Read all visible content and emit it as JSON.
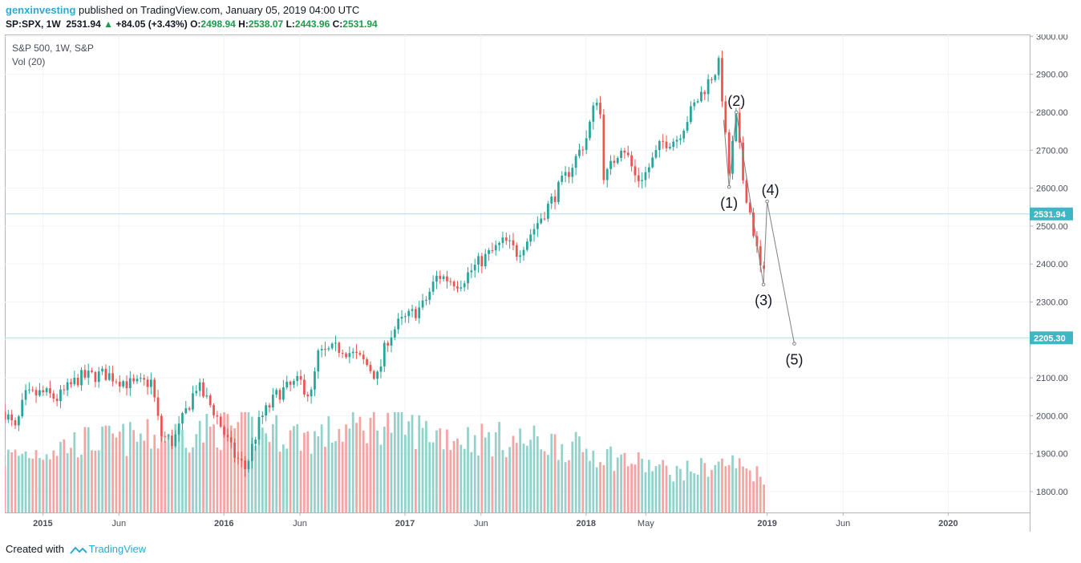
{
  "header": {
    "user": "genxinvesting",
    "published": "published on TradingView.com, January 05, 2019 04:00 UTC",
    "symbol": "SP:SPX, 1W",
    "last": "2531.94",
    "change": "+84.05 (+3.43%)",
    "o_label": "O:",
    "o": "2498.94",
    "h_label": "H:",
    "h": "2538.07",
    "l_label": "L:",
    "l": "2443.96",
    "c_label": "C:",
    "c": "2531.94"
  },
  "legend": {
    "title": "S&P 500, 1W, S&P",
    "volume": "Vol (20)"
  },
  "footer": {
    "created": "Created with",
    "brand": "TradingView"
  },
  "chart_data": {
    "type": "candlestick",
    "ylim": [
      1745,
      3005
    ],
    "y_ticks": [
      "3000.00",
      "2900.00",
      "2800.00",
      "2700.00",
      "2600.00",
      "2500.00",
      "2400.00",
      "2300.00",
      "2200.00",
      "2100.00",
      "2000.00",
      "1900.00",
      "1800.00"
    ],
    "x_ticks": [
      "2015",
      "Jun",
      "2016",
      "Jun",
      "2017",
      "Jun",
      "2018",
      "May",
      "2019",
      "Jun",
      "2020"
    ],
    "x_tick_dates": [
      2015.0,
      2015.42,
      2016.0,
      2016.42,
      2017.0,
      2017.42,
      2018.0,
      2018.33,
      2019.0,
      2019.42,
      2020.0
    ],
    "xlim": [
      2014.79,
      2020.45
    ],
    "price_lines": [
      {
        "value": 2531.94,
        "label": "2531.94"
      },
      {
        "value": 2205.3,
        "label": "2205.30"
      }
    ],
    "colors": {
      "up": "#26a69a",
      "down": "#ef5350",
      "vol_up": "#93d2cb",
      "vol_down": "#f5a4a2",
      "hline": "#a9dfe6",
      "wave": "#808080"
    },
    "elliott_wave": [
      {
        "label": "(1)",
        "date": 2018.79,
        "value": 2603
      },
      {
        "label": "(2)",
        "date": 2018.83,
        "value": 2800
      },
      {
        "label": "(3)",
        "date": 2018.98,
        "value": 2346
      },
      {
        "label": "(4)",
        "date": 2019.0,
        "value": 2565
      },
      {
        "label": "(5)",
        "date": 2019.15,
        "value": 2190
      }
    ],
    "wave_start": {
      "date": 2018.76,
      "value": 2780
    },
    "price_path": [
      [
        2014.79,
        2010
      ],
      [
        2014.85,
        1960
      ],
      [
        2014.9,
        2050
      ],
      [
        2015.0,
        2060
      ],
      [
        2015.08,
        2045
      ],
      [
        2015.2,
        2100
      ],
      [
        2015.35,
        2110
      ],
      [
        2015.5,
        2080
      ],
      [
        2015.6,
        2090
      ],
      [
        2015.65,
        1950
      ],
      [
        2015.72,
        1930
      ],
      [
        2015.85,
        2080
      ],
      [
        2015.95,
        2010
      ],
      [
        2016.05,
        1900
      ],
      [
        2016.12,
        1860
      ],
      [
        2016.2,
        1990
      ],
      [
        2016.3,
        2060
      ],
      [
        2016.42,
        2090
      ],
      [
        2016.48,
        2050
      ],
      [
        2016.52,
        2160
      ],
      [
        2016.65,
        2180
      ],
      [
        2016.78,
        2140
      ],
      [
        2016.85,
        2100
      ],
      [
        2016.9,
        2200
      ],
      [
        2016.96,
        2240
      ],
      [
        2017.1,
        2290
      ],
      [
        2017.18,
        2370
      ],
      [
        2017.3,
        2350
      ],
      [
        2017.4,
        2400
      ],
      [
        2017.55,
        2460
      ],
      [
        2017.62,
        2430
      ],
      [
        2017.68,
        2470
      ],
      [
        2017.8,
        2560
      ],
      [
        2017.9,
        2640
      ],
      [
        2018.0,
        2730
      ],
      [
        2018.07,
        2860
      ],
      [
        2018.1,
        2620
      ],
      [
        2018.2,
        2720
      ],
      [
        2018.28,
        2620
      ],
      [
        2018.33,
        2640
      ],
      [
        2018.42,
        2720
      ],
      [
        2018.5,
        2730
      ],
      [
        2018.6,
        2820
      ],
      [
        2018.7,
        2900
      ],
      [
        2018.74,
        2930
      ],
      [
        2018.76,
        2780
      ],
      [
        2018.79,
        2640
      ],
      [
        2018.83,
        2790
      ],
      [
        2018.86,
        2640
      ],
      [
        2018.9,
        2550
      ],
      [
        2018.95,
        2420
      ],
      [
        2018.98,
        2350
      ],
      [
        2019.0,
        2531.94
      ]
    ],
    "volume_levels": [
      [
        2014.79,
        0.55
      ],
      [
        2014.95,
        0.6
      ],
      [
        2015.2,
        0.7
      ],
      [
        2015.6,
        0.75
      ],
      [
        2016.1,
        0.85
      ],
      [
        2016.5,
        0.75
      ],
      [
        2016.85,
        0.9
      ],
      [
        2017.3,
        0.75
      ],
      [
        2017.8,
        0.7
      ],
      [
        2018.05,
        0.6
      ],
      [
        2018.5,
        0.4
      ],
      [
        2018.8,
        0.5
      ],
      [
        2019.0,
        0.35
      ]
    ]
  }
}
